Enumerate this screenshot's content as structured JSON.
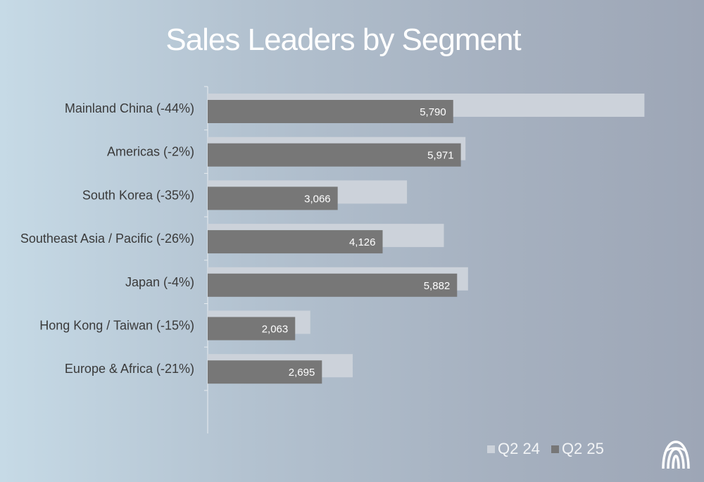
{
  "colors": {
    "q2_24": "#ccd2da",
    "q2_25": "#777777",
    "axis": "#e8ecf0"
  },
  "logo_icon": "nu-skin-logo-icon",
  "chart_data": {
    "type": "bar",
    "orientation": "horizontal",
    "title": "Sales Leaders by Segment",
    "categories": [
      "Mainland China (-44%)",
      "Americas (-2%)",
      "South Korea (-35%)",
      "Southeast Asia / Pacific (-26%)",
      "Japan (-4%)",
      "Hong Kong / Taiwan (-15%)",
      "Europe & Africa (-21%)"
    ],
    "series": [
      {
        "name": "Q2 24",
        "values": [
          10300,
          6080,
          4700,
          5570,
          6140,
          2420,
          3420
        ]
      },
      {
        "name": "Q2 25",
        "values": [
          5790,
          5971,
          3066,
          4126,
          5882,
          2063,
          2695
        ]
      }
    ],
    "value_labels": [
      "5,790",
      "5,971",
      "3,066",
      "4,126",
      "5,882",
      "2,063",
      "2,695"
    ],
    "xlim": [
      0,
      13000
    ],
    "grid": false,
    "legend_position": "bottom-right"
  }
}
